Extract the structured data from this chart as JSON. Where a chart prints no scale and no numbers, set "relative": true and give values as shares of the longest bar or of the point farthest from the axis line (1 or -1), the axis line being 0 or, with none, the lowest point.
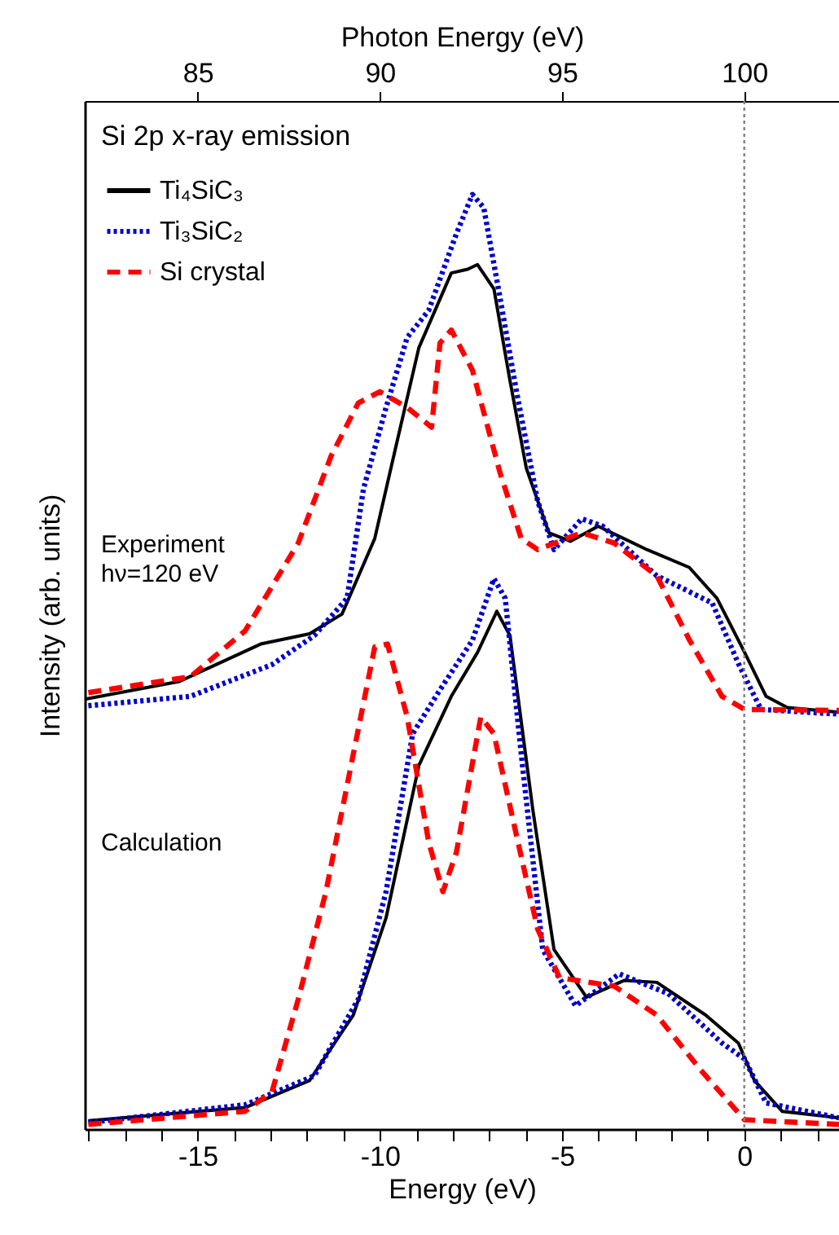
{
  "chart_data": {
    "type": "line",
    "relative": true,
    "xlabel": "Energy (eV)",
    "ylabel": "Intensity (arb. units)",
    "x2label": "Photon Energy (eV)",
    "xlim": [
      -18.1,
      2.6
    ],
    "xticks": [
      {
        "value": -18,
        "label": null
      },
      {
        "value": -17,
        "label": null
      },
      {
        "value": -16,
        "label": null
      },
      -15,
      {
        "value": -14,
        "label": null
      },
      {
        "value": -13,
        "label": null
      },
      {
        "value": -12,
        "label": null
      },
      {
        "value": -11,
        "label": null
      },
      -10,
      {
        "value": -9,
        "label": null
      },
      {
        "value": -8,
        "label": null
      },
      {
        "value": -7,
        "label": null
      },
      {
        "value": -6,
        "label": null
      },
      -5,
      {
        "value": -4,
        "label": null
      },
      {
        "value": -3,
        "label": null
      },
      {
        "value": -2,
        "label": null
      },
      {
        "value": -1,
        "label": null
      },
      0,
      {
        "value": 1,
        "label": null
      },
      {
        "value": 2,
        "label": null
      }
    ],
    "x2lim": [
      81.9,
      102.6
    ],
    "x2ticks": [
      85,
      90,
      95,
      100
    ],
    "legend": "top left",
    "annotations": [
      "Si 2p x-ray emission",
      "Experiment\nhν=120 eV",
      "Calculation"
    ],
    "ref_lines": [
      {
        "axis": "x",
        "value": 0,
        "color": "#808080",
        "line_style": "dotted"
      }
    ],
    "series": [
      {
        "name": "Ti₄SiC₃",
        "color": "#000000",
        "line_style": "solid",
        "x": [
          -18.1,
          -15.5,
          -13.27,
          -11.93,
          -11.04,
          -10.14,
          -9.55,
          -8.93,
          -8.04,
          -7.59,
          -7.32,
          -6.87,
          -6.43,
          -5.98,
          -5.36,
          -4.77,
          -4.01,
          -2.67,
          -1.51,
          -0.75,
          0.01,
          0.6,
          1.18,
          2.6
        ],
        "values": [
          0.46,
          0.479,
          0.519,
          0.53,
          0.551,
          0.632,
          0.732,
          0.836,
          0.916,
          0.92,
          0.925,
          0.899,
          0.801,
          0.707,
          0.638,
          0.629,
          0.645,
          0.62,
          0.601,
          0.568,
          0.51,
          0.463,
          0.451,
          0.446
        ]
      },
      {
        "name": "Ti₃SiC₂",
        "color": "#0000cc",
        "line_style": "dotted",
        "x": [
          -18.0,
          -15.2,
          -12.96,
          -11.8,
          -10.9,
          -10.45,
          -9.83,
          -9.25,
          -8.66,
          -7.9,
          -7.46,
          -7.15,
          -6.7,
          -6.25,
          -5.67,
          -5.22,
          -4.46,
          -3.88,
          -2.4,
          -0.88,
          -0.16,
          0.46,
          2.6
        ],
        "values": [
          0.453,
          0.463,
          0.497,
          0.528,
          0.568,
          0.685,
          0.772,
          0.847,
          0.876,
          0.958,
          1.0,
          0.986,
          0.889,
          0.789,
          0.672,
          0.62,
          0.653,
          0.645,
          0.592,
          0.563,
          0.498,
          0.449,
          0.444
        ]
      },
      {
        "name": "Si crystal",
        "color": "#ff0000",
        "line_style": "dashed",
        "x": [
          -18.0,
          -15.2,
          -13.7,
          -12.24,
          -11.34,
          -10.59,
          -10.0,
          -9.25,
          -8.58,
          -8.35,
          -8.04,
          -7.46,
          -6.7,
          -6.12,
          -5.67,
          -4.46,
          -3.57,
          -2.4,
          -1.5,
          -0.61,
          0.01,
          2.6
        ],
        "values": [
          0.467,
          0.484,
          0.533,
          0.627,
          0.72,
          0.777,
          0.789,
          0.772,
          0.751,
          0.841,
          0.855,
          0.812,
          0.702,
          0.632,
          0.62,
          0.638,
          0.627,
          0.592,
          0.523,
          0.463,
          0.449,
          0.448
        ]
      },
      {
        "color": "#000000",
        "line_style": "solid",
        "x": [
          -18.0,
          -13.7,
          -11.93,
          -10.73,
          -9.83,
          -8.93,
          -8.04,
          -7.32,
          -6.79,
          -6.43,
          -5.8,
          -5.22,
          -4.33,
          -3.3,
          -2.4,
          -1.06,
          -0.16,
          0.28,
          1.04,
          2.6
        ],
        "values": [
          0.009,
          0.023,
          0.052,
          0.122,
          0.226,
          0.389,
          0.463,
          0.51,
          0.554,
          0.528,
          0.341,
          0.192,
          0.141,
          0.159,
          0.157,
          0.122,
          0.092,
          0.052,
          0.019,
          0.012
        ]
      },
      {
        "color": "#0000cc",
        "line_style": "dotted",
        "x": [
          -18.0,
          -13.7,
          -11.8,
          -10.59,
          -9.83,
          -9.1,
          -8.35,
          -7.46,
          -6.87,
          -6.56,
          -6.12,
          -5.53,
          -4.63,
          -3.43,
          -2.09,
          -0.61,
          0.01,
          0.6,
          2.6
        ],
        "values": [
          0.007,
          0.026,
          0.057,
          0.139,
          0.254,
          0.423,
          0.47,
          0.523,
          0.589,
          0.568,
          0.401,
          0.192,
          0.132,
          0.166,
          0.145,
          0.092,
          0.075,
          0.028,
          0.012
        ]
      },
      {
        "color": "#ff0000",
        "line_style": "dashed",
        "x": [
          -18.0,
          -13.7,
          -12.96,
          -12.24,
          -11.48,
          -10.73,
          -10.14,
          -9.79,
          -9.25,
          -8.66,
          -8.27,
          -7.9,
          -7.23,
          -6.87,
          -6.25,
          -5.67,
          -5.07,
          -3.57,
          -2.4,
          -1.19,
          0.01,
          2.6
        ],
        "values": [
          0.005,
          0.019,
          0.04,
          0.139,
          0.254,
          0.401,
          0.516,
          0.519,
          0.441,
          0.307,
          0.254,
          0.296,
          0.441,
          0.423,
          0.314,
          0.214,
          0.162,
          0.153,
          0.122,
          0.063,
          0.01,
          0.005
        ]
      }
    ]
  }
}
